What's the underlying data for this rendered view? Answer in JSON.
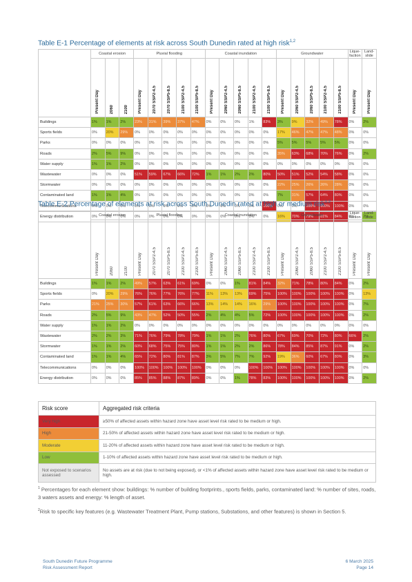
{
  "table1": {
    "caption": "Table E-1 Percentage of elements at risk across South Dunedin rated at high risk",
    "caption_sup": "1,2",
    "groups": [
      "Coastal erosion",
      "Pluvial flooding",
      "Coastal inundation",
      "Groundwater",
      "Lique-faction",
      "Land-slide"
    ],
    "columns": [
      "Present Day",
      "2060",
      "2100",
      "Present Day",
      "2070 SSP2-4.5",
      "2070 SSP5-8.5",
      "2100 SSP2-4.5",
      "2100 SSP5-8.5",
      "Present Day",
      "2060 SSP2-4.5",
      "2060 SSP5-8.5",
      "2100 SSP2-4.5",
      "2100 SSP5-8.5",
      "Present Day",
      "2060 SSP2-4.5",
      "2060 SSP5-8.5",
      "2100 SSP2-4.5",
      "2100 SSP5-8.5",
      "Present Day",
      "Present Day"
    ],
    "rows": [
      {
        "label": "Buildings",
        "cells": [
          "1%",
          "1%",
          "2%",
          "23%",
          "31%",
          "39%",
          "37%",
          "47%",
          "0%",
          "0%",
          "0%",
          "1%",
          "83%",
          "3%",
          "9%",
          "32%",
          "49%",
          "78%",
          "0%",
          "2%"
        ],
        "classes": [
          "l",
          "l",
          "l",
          "h",
          "h",
          "h",
          "h",
          "h",
          "n",
          "n",
          "n",
          "n",
          "vh",
          "l",
          "m",
          "h",
          "h",
          "vh",
          "n",
          "l"
        ]
      },
      {
        "label": "Sports fields",
        "cells": [
          "0%",
          "20%",
          "29%",
          "0%",
          "0%",
          "0%",
          "0%",
          "0%",
          "0%",
          "0%",
          "0%",
          "0%",
          "0%",
          "17%",
          "46%",
          "47%",
          "47%",
          "48%",
          "0%",
          "0%"
        ],
        "classes": [
          "n",
          "m",
          "h",
          "n",
          "n",
          "n",
          "n",
          "n",
          "n",
          "n",
          "n",
          "n",
          "n",
          "m",
          "h",
          "h",
          "h",
          "h",
          "n",
          "n"
        ]
      },
      {
        "label": "Parks",
        "cells": [
          "0%",
          "0%",
          "0%",
          "0%",
          "0%",
          "0%",
          "0%",
          "0%",
          "0%",
          "0%",
          "0%",
          "0%",
          "0%",
          "5%",
          "5%",
          "5%",
          "5%",
          "5%",
          "0%",
          "0%"
        ],
        "classes": [
          "n",
          "n",
          "n",
          "n",
          "n",
          "n",
          "n",
          "n",
          "n",
          "n",
          "n",
          "n",
          "n",
          "l",
          "l",
          "l",
          "l",
          "l",
          "n",
          "n"
        ]
      },
      {
        "label": "Roads",
        "cells": [
          "2%",
          "5%",
          "9%",
          "0%",
          "0%",
          "0%",
          "0%",
          "0%",
          "0%",
          "0%",
          "0%",
          "0%",
          "0%",
          "35%",
          "63%",
          "68%",
          "70%",
          "76%",
          "0%",
          "2%"
        ],
        "classes": [
          "l",
          "l",
          "l",
          "n",
          "n",
          "n",
          "n",
          "n",
          "n",
          "n",
          "n",
          "n",
          "n",
          "h",
          "vh",
          "vh",
          "vh",
          "vh",
          "n",
          "l"
        ]
      },
      {
        "label": "Water supply",
        "cells": [
          "1%",
          "1%",
          "2%",
          "0%",
          "0%",
          "0%",
          "0%",
          "0%",
          "0%",
          "0%",
          "0%",
          "0%",
          "0%",
          "0%",
          "0%",
          "0%",
          "0%",
          "0%",
          "0%",
          "0%"
        ],
        "classes": [
          "l",
          "l",
          "l",
          "n",
          "n",
          "n",
          "n",
          "n",
          "n",
          "n",
          "n",
          "n",
          "n",
          "n",
          "n",
          "n",
          "n",
          "n",
          "n",
          "n"
        ]
      },
      {
        "label": "Wastewater",
        "cells": [
          "0%",
          "0%",
          "0%",
          "51%",
          "59%",
          "67%",
          "66%",
          "72%",
          "1%",
          "1%",
          "2%",
          "2%",
          "80%",
          "50%",
          "51%",
          "52%",
          "54%",
          "58%",
          "0%",
          "0%"
        ],
        "classes": [
          "n",
          "n",
          "n",
          "vh",
          "vh",
          "vh",
          "vh",
          "vh",
          "l",
          "l",
          "l",
          "l",
          "vh",
          "vh",
          "vh",
          "vh",
          "vh",
          "vh",
          "n",
          "n"
        ]
      },
      {
        "label": "Stormwater",
        "cells": [
          "0%",
          "0%",
          "0%",
          "0%",
          "0%",
          "0%",
          "0%",
          "0%",
          "0%",
          "0%",
          "0%",
          "0%",
          "0%",
          "22%",
          "25%",
          "26%",
          "26%",
          "28%",
          "0%",
          "0%"
        ],
        "classes": [
          "n",
          "n",
          "n",
          "n",
          "n",
          "n",
          "n",
          "n",
          "n",
          "n",
          "n",
          "n",
          "n",
          "h",
          "h",
          "h",
          "h",
          "h",
          "n",
          "n"
        ]
      },
      {
        "label": "Contaminated land",
        "cells": [
          "1%",
          "1%",
          "4%",
          "0%",
          "0%",
          "0%",
          "0%",
          "0%",
          "0%",
          "0%",
          "0%",
          "0%",
          "0%",
          "7%",
          "31%",
          "57%",
          "64%",
          "80%",
          "0%",
          "0%"
        ],
        "classes": [
          "l",
          "l",
          "l",
          "n",
          "n",
          "n",
          "n",
          "n",
          "n",
          "n",
          "n",
          "n",
          "n",
          "l",
          "h",
          "vh",
          "vh",
          "vh",
          "n",
          "n"
        ]
      },
      {
        "label": "Telecommunications",
        "cells": [
          "0%",
          "0%",
          "0%",
          "0%",
          "0%",
          "0%",
          "0%",
          "0%",
          "0%",
          "0%",
          "0%",
          "0%",
          "100%",
          "0%",
          "0%",
          "100%",
          "100%",
          "100%",
          "0%",
          "0%"
        ],
        "classes": [
          "n",
          "n",
          "n",
          "n",
          "n",
          "n",
          "n",
          "n",
          "n",
          "n",
          "n",
          "n",
          "vh",
          "n",
          "n",
          "vh",
          "vh",
          "vh",
          "n",
          "n"
        ]
      },
      {
        "label": "Energy distribution",
        "cells": [
          "0%",
          "0%",
          "0%",
          "0%",
          "0%",
          "0%",
          "0%",
          "0%",
          "0%",
          "0%",
          "0%",
          "0%",
          "0%",
          "16%",
          "70%",
          "79%",
          "81%",
          "84%",
          "0%",
          "2%"
        ],
        "classes": [
          "n",
          "n",
          "n",
          "n",
          "n",
          "n",
          "n",
          "n",
          "n",
          "n",
          "n",
          "n",
          "n",
          "m",
          "vh",
          "vh",
          "vh",
          "vh",
          "n",
          "l"
        ]
      }
    ]
  },
  "table2": {
    "caption": "Table E-2 Percentage of elements at risk across South Dunedin rated at high or medium risk",
    "caption_sup": "1,2",
    "groups": [
      "Coastal erosion",
      "Pluvial flooding",
      "Coastal inundation",
      "Groundwater",
      "Lique-faction",
      "Land-slide"
    ],
    "columns": [
      "Present Day",
      "2060",
      "2100",
      "Present Day",
      "2070 SSP2-4.5",
      "2070 SSP5-8.5",
      "2100 SSP2-4.5",
      "2100 SSP5-8.5",
      "Present Day",
      "2060 SSP2-4.5",
      "2060 SSP5-8.5",
      "2100 SSP2-4.5",
      "2100 SSP5-8.5",
      "Present Day",
      "2060 SSP2-4.5",
      "2060 SSP5-8.5",
      "2100 SSP2-4.5",
      "2100 SSP5-8.5",
      "Present Day",
      "Present Day"
    ],
    "rows": [
      {
        "label": "Buildings",
        "cells": [
          "1%",
          "1%",
          "2%",
          "49%",
          "57%",
          "63%",
          "61%",
          "69%",
          "0%",
          "0%",
          "1%",
          "81%",
          "84%",
          "32%",
          "71%",
          "78%",
          "80%",
          "84%",
          "0%",
          "2%"
        ],
        "classes": [
          "l",
          "l",
          "l",
          "h",
          "vh",
          "vh",
          "vh",
          "vh",
          "n",
          "n",
          "l",
          "vh",
          "vh",
          "h",
          "vh",
          "vh",
          "vh",
          "vh",
          "n",
          "l"
        ]
      },
      {
        "label": "Sports fields",
        "cells": [
          "0%",
          "20%",
          "29%",
          "76%",
          "76%",
          "77%",
          "76%",
          "77%",
          "11%",
          "13%",
          "13%",
          "69%",
          "75%",
          "100%",
          "100%",
          "100%",
          "100%",
          "100%",
          "0%",
          "13%"
        ],
        "classes": [
          "n",
          "m",
          "h",
          "vh",
          "vh",
          "vh",
          "vh",
          "vh",
          "m",
          "m",
          "m",
          "vh",
          "vh",
          "vh",
          "vh",
          "vh",
          "vh",
          "vh",
          "n",
          "m"
        ]
      },
      {
        "label": "Parks",
        "cells": [
          "21%",
          "25%",
          "30%",
          "57%",
          "61%",
          "63%",
          "66%",
          "66%",
          "13%",
          "14%",
          "14%",
          "16%",
          "29%",
          "100%",
          "100%",
          "100%",
          "100%",
          "100%",
          "0%",
          "7%"
        ],
        "classes": [
          "h",
          "h",
          "h",
          "vh",
          "vh",
          "vh",
          "vh",
          "vh",
          "m",
          "m",
          "m",
          "m",
          "h",
          "vh",
          "vh",
          "vh",
          "vh",
          "vh",
          "n",
          "l"
        ]
      },
      {
        "label": "Roads",
        "cells": [
          "2%",
          "5%",
          "9%",
          "43%",
          "47%",
          "52%",
          "50%",
          "55%",
          "2%",
          "4%",
          "4%",
          "5%",
          "72%",
          "100%",
          "100%",
          "100%",
          "100%",
          "100%",
          "0%",
          "2%"
        ],
        "classes": [
          "l",
          "l",
          "l",
          "h",
          "h",
          "vh",
          "vh",
          "vh",
          "l",
          "l",
          "l",
          "l",
          "vh",
          "vh",
          "vh",
          "vh",
          "vh",
          "vh",
          "n",
          "l"
        ]
      },
      {
        "label": "Water supply",
        "cells": [
          "1%",
          "1%",
          "2%",
          "0%",
          "0%",
          "0%",
          "0%",
          "0%",
          "0%",
          "0%",
          "0%",
          "0%",
          "0%",
          "0%",
          "0%",
          "0%",
          "0%",
          "0%",
          "0%",
          "0%"
        ],
        "classes": [
          "l",
          "l",
          "l",
          "n",
          "n",
          "n",
          "n",
          "n",
          "n",
          "n",
          "n",
          "n",
          "n",
          "n",
          "n",
          "n",
          "n",
          "n",
          "n",
          "n"
        ]
      },
      {
        "label": "Wastewater",
        "cells": [
          "2%",
          "2%",
          "3%",
          "71%",
          "76%",
          "79%",
          "78%",
          "79%",
          "1%",
          "1%",
          "2%",
          "76%",
          "80%",
          "67%",
          "69%",
          "70%",
          "72%",
          "80%",
          "66%",
          "2%"
        ],
        "classes": [
          "l",
          "l",
          "l",
          "vh",
          "vh",
          "vh",
          "vh",
          "vh",
          "l",
          "l",
          "l",
          "vh",
          "vh",
          "vh",
          "vh",
          "vh",
          "vh",
          "vh",
          "vh",
          "l"
        ]
      },
      {
        "label": "Stormwater",
        "cells": [
          "1%",
          "1%",
          "2%",
          "60%",
          "68%",
          "75%",
          "75%",
          "80%",
          "1%",
          "1%",
          "2%",
          "2%",
          "86%",
          "78%",
          "84%",
          "85%",
          "87%",
          "91%",
          "0%",
          "2%"
        ],
        "classes": [
          "l",
          "l",
          "l",
          "vh",
          "vh",
          "vh",
          "vh",
          "vh",
          "l",
          "l",
          "l",
          "l",
          "vh",
          "vh",
          "vh",
          "vh",
          "vh",
          "vh",
          "n",
          "l"
        ]
      },
      {
        "label": "Contaminated land",
        "cells": [
          "1%",
          "1%",
          "4%",
          "65%",
          "72%",
          "80%",
          "81%",
          "87%",
          "3%",
          "5%",
          "7%",
          "7%",
          "92%",
          "19%",
          "36%",
          "60%",
          "67%",
          "80%",
          "0%",
          "3%"
        ],
        "classes": [
          "l",
          "l",
          "l",
          "vh",
          "vh",
          "vh",
          "vh",
          "vh",
          "l",
          "l",
          "l",
          "l",
          "vh",
          "m",
          "h",
          "vh",
          "vh",
          "vh",
          "n",
          "l"
        ]
      },
      {
        "label": "Telecommunications",
        "cells": [
          "0%",
          "0%",
          "0%",
          "100%",
          "100%",
          "100%",
          "100%",
          "100%",
          "0%",
          "0%",
          "0%",
          "100%",
          "100%",
          "100%",
          "100%",
          "100%",
          "100%",
          "100%",
          "0%",
          "0%"
        ],
        "classes": [
          "n",
          "n",
          "n",
          "vh",
          "vh",
          "vh",
          "vh",
          "vh",
          "n",
          "n",
          "n",
          "vh",
          "vh",
          "vh",
          "vh",
          "vh",
          "vh",
          "vh",
          "n",
          "n"
        ]
      },
      {
        "label": "Energy distribution",
        "cells": [
          "0%",
          "0%",
          "0%",
          "85%",
          "85%",
          "88%",
          "87%",
          "89%",
          "0%",
          "0%",
          "1%",
          "78%",
          "83%",
          "100%",
          "100%",
          "100%",
          "100%",
          "100%",
          "0%",
          "2%"
        ],
        "classes": [
          "n",
          "n",
          "n",
          "vh",
          "vh",
          "vh",
          "vh",
          "vh",
          "n",
          "n",
          "l",
          "vh",
          "vh",
          "vh",
          "vh",
          "vh",
          "vh",
          "vh",
          "n",
          "l"
        ]
      }
    ]
  },
  "legend": {
    "header_score": "Risk score",
    "header_criteria": "Aggregated risk criteria",
    "rows": [
      {
        "score": "Very high",
        "cls": "vh",
        "criteria": "≥50% of affected assets within hazard zone have asset level risk rated to be medium or high."
      },
      {
        "score": "High",
        "cls": "h",
        "criteria": "21-50% of affected assets within hazard zone have asset level risk rated to be medium or high."
      },
      {
        "score": "Moderate",
        "cls": "m",
        "criteria": "11-20% of affected assets within hazard zone have asset level risk rated to be medium or high."
      },
      {
        "score": "Low",
        "cls": "l",
        "criteria": "1-10% of affected assets within hazard zone have asset level risk rated to be medium or high."
      },
      {
        "score": "Not exposed to scenarios assessed",
        "cls": "n",
        "criteria": "No assets are at risk (due to not being exposed), or <1% of affected assets within hazard zone have asset level risk rated to be medium or high."
      }
    ]
  },
  "footnotes": {
    "fn1_mark": "1",
    "fn1": "Percentages for each element show: buildings: % number of building footprints., sports fields, parks, contaminated land: % number of sites, roads, 3 waters assets and energy: % length of asset.",
    "fn2_mark": "2",
    "fn2": "Risk to specific key features (e.g. Wastewater Treatment Plant, Pump stations, Substations, and other features) is shown in Section 5."
  },
  "footer": {
    "programme": "South Dunedin Future Programme",
    "report": "Risk Assessment Report",
    "date": "6 March 2025",
    "page": "Page 14"
  },
  "colors": {
    "very_high": "#c8262c",
    "high": "#ec8b3a",
    "moderate": "#f2cf34",
    "low": "#8fbf3b",
    "none": "#ffffff",
    "caption": "#2b6a9a"
  }
}
